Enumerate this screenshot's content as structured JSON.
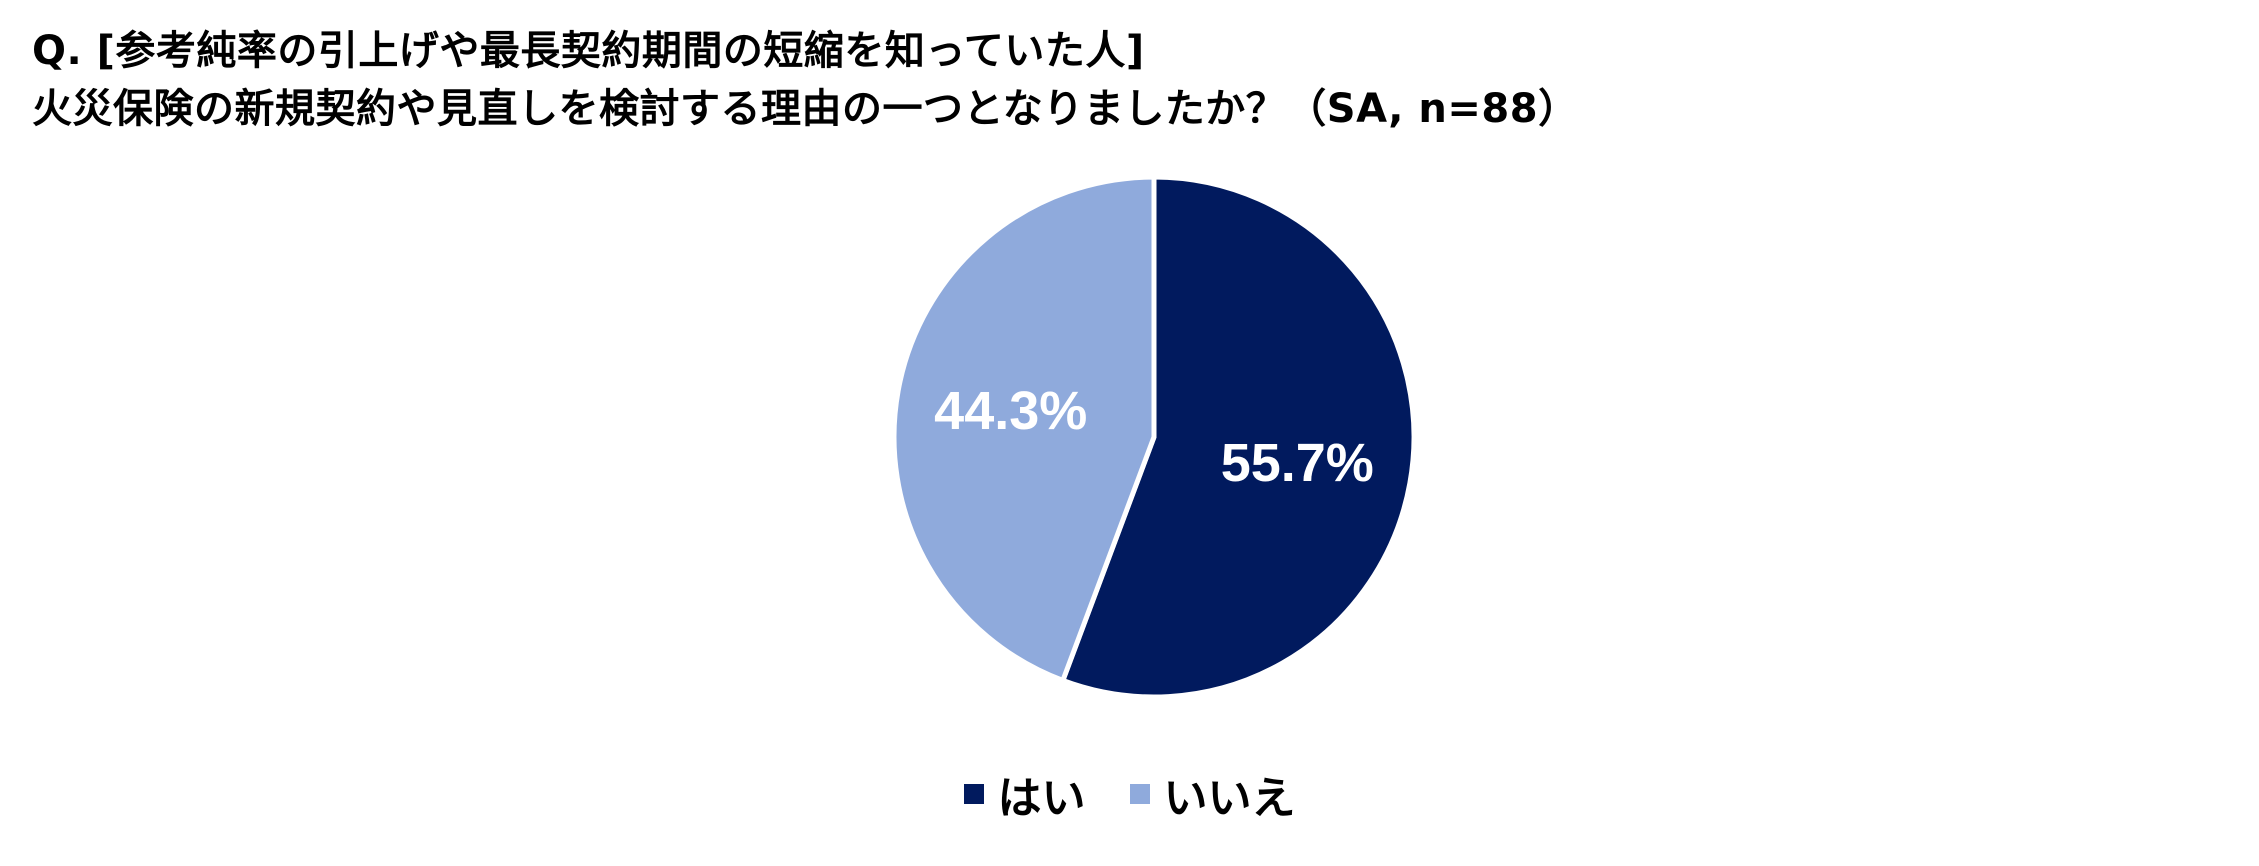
{
  "chart_data": {
    "type": "pie",
    "title": "Q. [参考純率の引上げや最長契約期間の短縮を知っていた人]",
    "subtitle": "火災保険の新規契約や見直しを検討する理由の一つとなりましたか？（SA, n=88）",
    "legend_position": "bottom",
    "slices": [
      {
        "label": "はい",
        "value": 55.7,
        "value_label": "55.7%",
        "color": "#011a5e",
        "label_color": "#ffffff"
      },
      {
        "label": "いいえ",
        "value": 44.3,
        "value_label": "44.3%",
        "color": "#8faadc",
        "label_color": "#ffffff"
      }
    ]
  }
}
